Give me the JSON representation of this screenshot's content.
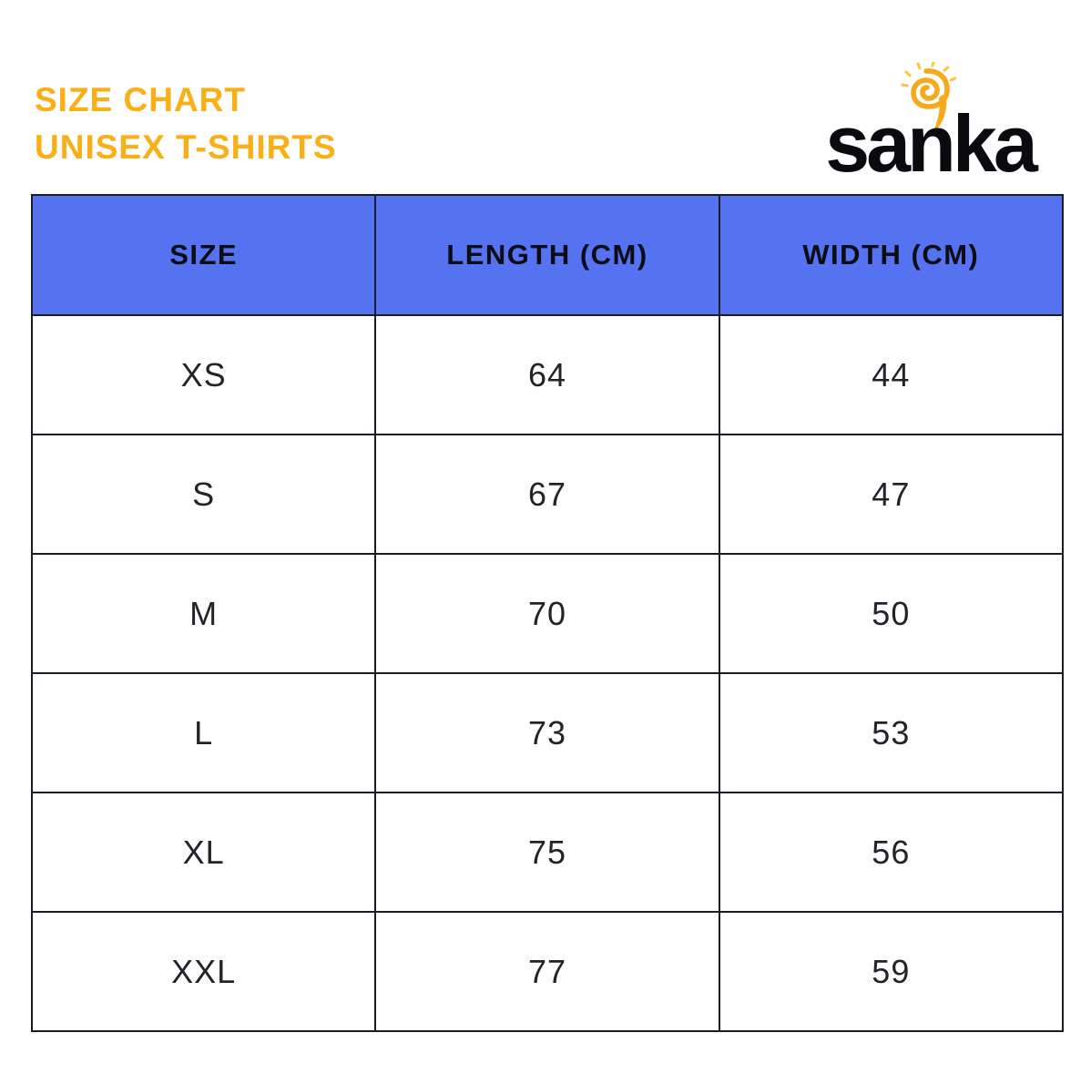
{
  "title": {
    "line1": "SIZE CHART",
    "line2": "UNISEX T-SHIRTS"
  },
  "logo": {
    "text": "sanka",
    "icon": "sun-spiral-icon"
  },
  "colors": {
    "accent_yellow": "#F9AF15",
    "header_blue": "#5573F0",
    "border_dark": "#1c1c24",
    "logo_sun_yellow": "#F7A91C",
    "logo_sun_light": "#FFC53A"
  },
  "chart_data": {
    "type": "table",
    "title": "SIZE CHART UNISEX T-SHIRTS",
    "columns": [
      "SIZE",
      "LENGTH (CM)",
      "WIDTH (CM)"
    ],
    "rows": [
      [
        "XS",
        "64",
        "44"
      ],
      [
        "S",
        "67",
        "47"
      ],
      [
        "M",
        "70",
        "50"
      ],
      [
        "L",
        "73",
        "53"
      ],
      [
        "XL",
        "75",
        "56"
      ],
      [
        "XXL",
        "77",
        "59"
      ]
    ]
  }
}
